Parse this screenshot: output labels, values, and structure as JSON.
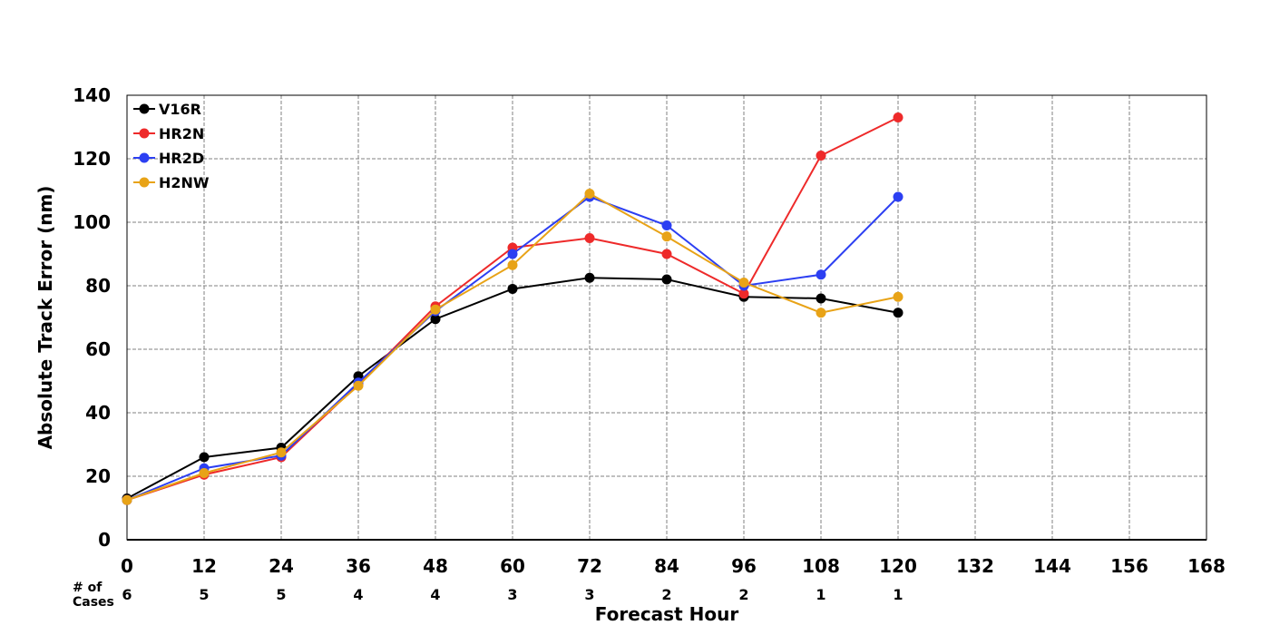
{
  "chart_data": {
    "type": "line",
    "xlabel": "Forecast Hour",
    "ylabel": "Absolute Track Error (nm)",
    "x": [
      0,
      12,
      24,
      36,
      48,
      60,
      72,
      84,
      96,
      108,
      120
    ],
    "xticks": [
      "0",
      "12",
      "24",
      "36",
      "48",
      "60",
      "72",
      "84",
      "96",
      "108",
      "120",
      "132",
      "144",
      "156",
      "168"
    ],
    "xlim": [
      0,
      168
    ],
    "ylim": [
      0,
      140
    ],
    "yticks": [
      "0",
      "20",
      "40",
      "60",
      "80",
      "100",
      "120",
      "140"
    ],
    "grid": true,
    "legend_position": "top-left",
    "cases_label": "# of\nCases",
    "cases": [
      "6",
      "5",
      "5",
      "4",
      "4",
      "3",
      "3",
      "2",
      "2",
      "1",
      "1"
    ],
    "series": [
      {
        "name": "V16R",
        "color": "#000000",
        "values": [
          13,
          26,
          29,
          51.5,
          69.5,
          79,
          82.5,
          82,
          76.5,
          76,
          71.5
        ]
      },
      {
        "name": "HR2N",
        "color": "#ee2a2a",
        "values": [
          12.5,
          20.5,
          26,
          49,
          73.5,
          92,
          95,
          90,
          77.5,
          121,
          133
        ]
      },
      {
        "name": "HR2D",
        "color": "#2c3ff2",
        "values": [
          12.5,
          22.5,
          26.5,
          49.5,
          72,
          90,
          108,
          99,
          80,
          83.5,
          108
        ]
      },
      {
        "name": "H2NW",
        "color": "#e8a317",
        "values": [
          12.5,
          21,
          27.5,
          48.5,
          72.5,
          86.5,
          109,
          95.5,
          81,
          71.5,
          76.5
        ]
      }
    ]
  }
}
